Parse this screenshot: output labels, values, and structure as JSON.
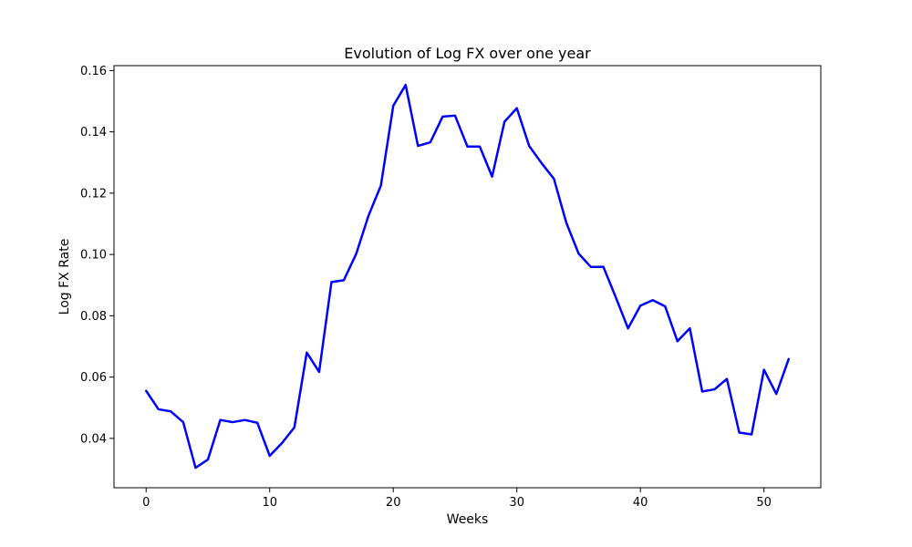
{
  "chart_data": {
    "type": "line",
    "title": "Evolution of Log FX over one year",
    "xlabel": "Weeks",
    "ylabel": "Log FX Rate",
    "xlim": [
      -2.6,
      54.6
    ],
    "ylim": [
      0.0239,
      0.1616
    ],
    "xticks": [
      0,
      10,
      20,
      30,
      40,
      50
    ],
    "yticks": [
      0.04,
      0.06,
      0.08,
      0.1,
      0.12,
      0.14,
      0.16
    ],
    "ytick_labels": [
      "0.04",
      "0.06",
      "0.08",
      "0.10",
      "0.12",
      "0.14",
      "0.16"
    ],
    "grid": false,
    "line_color": "#0000ff",
    "series": [
      {
        "x": [
          0,
          1,
          2,
          3,
          4,
          5,
          6,
          7,
          8,
          9,
          10,
          11,
          12,
          13,
          14,
          15,
          16,
          17,
          18,
          19,
          20,
          21,
          22,
          23,
          24,
          25,
          26,
          27,
          28,
          29,
          30,
          31,
          32,
          33,
          34,
          35,
          36,
          37,
          38,
          39,
          40,
          41,
          42,
          43,
          44,
          45,
          46,
          47,
          48,
          49,
          50,
          51,
          52
        ],
        "values": [
          0.0555,
          0.0495,
          0.0488,
          0.0453,
          0.0304,
          0.0331,
          0.046,
          0.0453,
          0.046,
          0.0451,
          0.0343,
          0.0385,
          0.0436,
          0.068,
          0.0617,
          0.091,
          0.0916,
          0.1002,
          0.1127,
          0.1225,
          0.1485,
          0.1553,
          0.1354,
          0.1366,
          0.145,
          0.1453,
          0.1352,
          0.1352,
          0.1254,
          0.1433,
          0.1477,
          0.1354,
          0.1298,
          0.1247,
          0.1104,
          0.1003,
          0.0959,
          0.096,
          0.0861,
          0.0759,
          0.0833,
          0.0851,
          0.0831,
          0.0717,
          0.0759,
          0.0553,
          0.056,
          0.0594,
          0.0419,
          0.0413,
          0.0624,
          0.0545,
          0.0659
        ]
      }
    ]
  }
}
